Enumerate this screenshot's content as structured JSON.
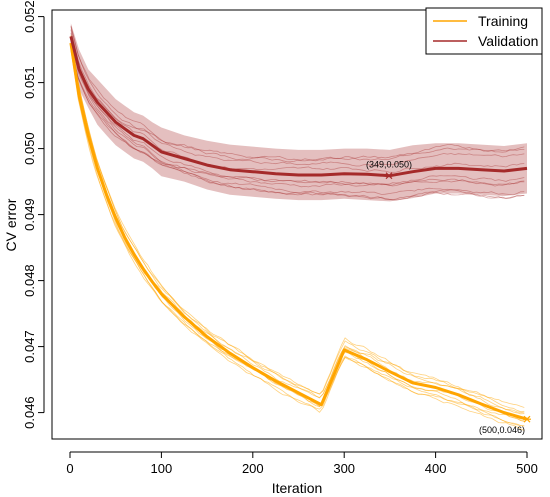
{
  "chart_data": {
    "type": "line",
    "xlabel": "Iteration",
    "ylabel": "CV error",
    "xlim": [
      0,
      500
    ],
    "ylim": [
      0.0456,
      0.0521
    ],
    "x_ticks": [
      0,
      100,
      200,
      300,
      400,
      500
    ],
    "y_ticks": [
      0.046,
      0.047,
      0.048,
      0.049,
      0.05,
      0.051,
      0.052
    ],
    "x_tick_labels": [
      "0",
      "100",
      "200",
      "300",
      "400",
      "500"
    ],
    "y_tick_labels": [
      "0.046",
      "0.047",
      "0.048",
      "0.049",
      "0.050",
      "0.051",
      "0.052"
    ],
    "grid": false,
    "legend_position": "top-right",
    "legend": [
      "Training",
      "Validation"
    ],
    "colors": {
      "training": "#FFA500",
      "validation": "#A52A2A"
    },
    "series": [
      {
        "name": "Training",
        "x": [
          1,
          10,
          20,
          30,
          40,
          50,
          60,
          70,
          80,
          90,
          100,
          125,
          150,
          175,
          200,
          225,
          250,
          275,
          300,
          325,
          350,
          375,
          400,
          425,
          450,
          475,
          500
        ],
        "y": [
          0.0516,
          0.0508,
          0.0502,
          0.0497,
          0.0493,
          0.04895,
          0.04865,
          0.0484,
          0.04818,
          0.04798,
          0.0478,
          0.04745,
          0.04715,
          0.0469,
          0.04668,
          0.04648,
          0.0463,
          0.04612,
          0.04695,
          0.0468,
          0.04662,
          0.04645,
          0.04638,
          0.04627,
          0.04613,
          0.046,
          0.0459
        ]
      },
      {
        "name": "Validation",
        "x": [
          1,
          10,
          20,
          30,
          40,
          50,
          60,
          70,
          80,
          90,
          100,
          125,
          150,
          175,
          200,
          225,
          250,
          275,
          300,
          325,
          350,
          375,
          400,
          425,
          450,
          475,
          500
        ],
        "y": [
          0.0517,
          0.0512,
          0.0509,
          0.0507,
          0.05055,
          0.0504,
          0.0503,
          0.0502,
          0.05015,
          0.05005,
          0.04995,
          0.04985,
          0.04975,
          0.04968,
          0.04965,
          0.04962,
          0.0496,
          0.0496,
          0.04962,
          0.04961,
          0.04959,
          0.04965,
          0.0497,
          0.0497,
          0.04968,
          0.04966,
          0.0497
        ]
      }
    ],
    "validation_band": {
      "x": [
        1,
        10,
        20,
        30,
        40,
        50,
        60,
        70,
        80,
        90,
        100,
        125,
        150,
        175,
        200,
        225,
        250,
        275,
        300,
        325,
        350,
        375,
        400,
        425,
        450,
        475,
        500
      ],
      "upper": [
        0.0519,
        0.0515,
        0.0512,
        0.05105,
        0.0509,
        0.05075,
        0.05065,
        0.05055,
        0.0505,
        0.0504,
        0.05032,
        0.0502,
        0.05012,
        0.05006,
        0.05003,
        0.05,
        0.04998,
        0.04998,
        0.05,
        0.05,
        0.04998,
        0.05005,
        0.05008,
        0.05008,
        0.05006,
        0.05004,
        0.05008
      ],
      "lower": [
        0.0515,
        0.0509,
        0.05062,
        0.05036,
        0.0502,
        0.05005,
        0.04995,
        0.04985,
        0.0498,
        0.0497,
        0.04958,
        0.0495,
        0.04938,
        0.0493,
        0.04927,
        0.04924,
        0.04922,
        0.04922,
        0.04924,
        0.04922,
        0.0492,
        0.04925,
        0.04932,
        0.04932,
        0.0493,
        0.04928,
        0.04932
      ]
    },
    "annotations": [
      {
        "text": "(349,0.050)",
        "x": 349,
        "y": 0.04959,
        "series": "Validation"
      },
      {
        "text": "(500,0.046)",
        "x": 500,
        "y": 0.0459,
        "series": "Training"
      }
    ]
  }
}
